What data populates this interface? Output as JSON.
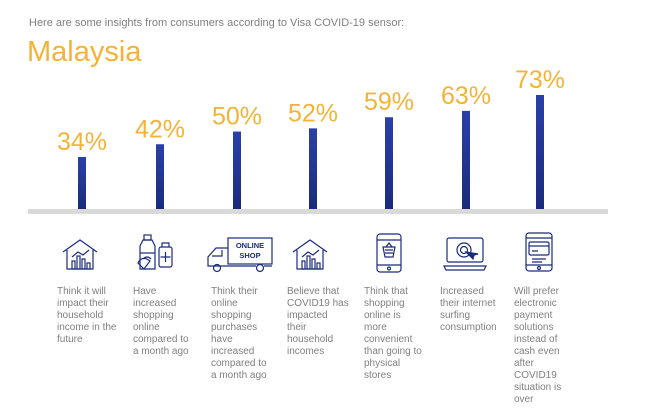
{
  "intro": "Here are some insights from consumers according to Visa COVID-19 sensor:",
  "country": "Malaysia",
  "colors": {
    "accent": "#f5b335",
    "bar": "#1a2b7c",
    "text": "#808080",
    "baseline": "#d9d9d9"
  },
  "chart_data": {
    "type": "bar",
    "categories": [
      "Think it will impact their household income in the future",
      "Have increased shopping online compared to a month ago",
      "Think their online shopping purchases have increased compared to a month ago",
      "Believe that COVID19 has impacted their household incomes",
      "Think that shopping online is more convenient than going to physical stores",
      "Increased their internet surfing consumption",
      "Will prefer electronic payment solutions instead of cash even after COVID19 situation is over"
    ],
    "values": [
      34,
      42,
      50,
      52,
      59,
      63,
      73
    ],
    "value_labels": [
      "34%",
      "42%",
      "50%",
      "52%",
      "59%",
      "63%",
      "73%"
    ],
    "ylim": [
      0,
      73
    ],
    "grid": false,
    "legend": "none"
  },
  "items": [
    {
      "icon": "house-chart-icon"
    },
    {
      "icon": "groceries-icon"
    },
    {
      "icon": "delivery-truck-icon",
      "icon_text": [
        "ONLINE",
        "SHOP"
      ]
    },
    {
      "icon": "house-chart-icon"
    },
    {
      "icon": "mobile-shopping-icon"
    },
    {
      "icon": "laptop-click-icon"
    },
    {
      "icon": "card-payment-icon"
    }
  ]
}
